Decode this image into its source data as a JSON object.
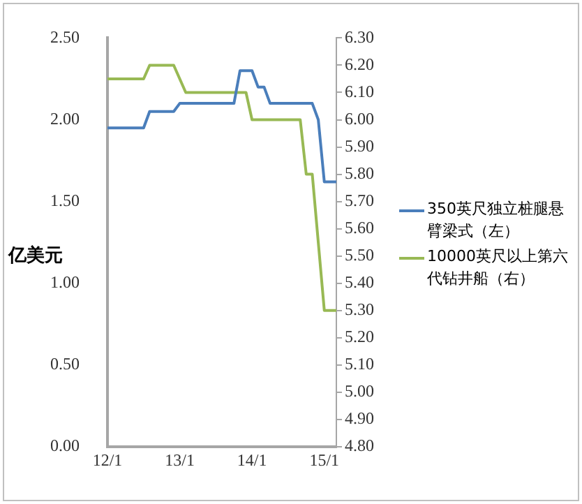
{
  "chart_data": {
    "type": "line",
    "ylabel": "亿美元",
    "legend": "right",
    "grid": false,
    "marker": "none",
    "categories": [
      "12/1",
      null,
      null,
      null,
      null,
      null,
      null,
      null,
      null,
      null,
      null,
      null,
      "13/1",
      null,
      null,
      null,
      null,
      null,
      null,
      null,
      null,
      null,
      null,
      null,
      "14/1",
      null,
      null,
      null,
      null,
      null,
      null,
      null,
      null,
      null,
      null,
      null,
      "15/1",
      null,
      null
    ],
    "ylim": [
      0,
      2.5
    ],
    "yticks": [
      {
        "value": 0,
        "label": "0.00"
      },
      {
        "value": 0.5,
        "label": "0.50"
      },
      {
        "value": 1,
        "label": "1.00"
      },
      {
        "value": 1.5,
        "label": "1.50"
      },
      {
        "value": 2,
        "label": "2.00"
      },
      {
        "value": 2.5,
        "label": "2.50"
      }
    ],
    "y2lim": [
      4.8,
      6.3
    ],
    "y2ticks": [
      {
        "value": 4.8,
        "label": "4.80"
      },
      {
        "value": 4.9,
        "label": "4.90"
      },
      {
        "value": 5.0,
        "label": "5.00"
      },
      {
        "value": 5.1,
        "label": "5.10"
      },
      {
        "value": 5.2,
        "label": "5.20"
      },
      {
        "value": 5.3,
        "label": "5.30"
      },
      {
        "value": 5.4,
        "label": "5.40"
      },
      {
        "value": 5.5,
        "label": "5.50"
      },
      {
        "value": 5.6,
        "label": "5.60"
      },
      {
        "value": 5.7,
        "label": "5.70"
      },
      {
        "value": 5.8,
        "label": "5.80"
      },
      {
        "value": 5.9,
        "label": "5.90"
      },
      {
        "value": 6.0,
        "label": "6.00"
      },
      {
        "value": 6.1,
        "label": "6.10"
      },
      {
        "value": 6.2,
        "label": "6.20"
      },
      {
        "value": 6.3,
        "label": "6.30"
      }
    ],
    "series": [
      {
        "name": "350英尺独立桩腿悬臂梁式（左）",
        "color": "#4a7ebb",
        "values": [
          1.95,
          1.95,
          1.95,
          1.95,
          1.95,
          1.95,
          1.95,
          2.05,
          2.05,
          2.05,
          2.05,
          2.05,
          2.1,
          2.1,
          2.1,
          2.1,
          2.1,
          2.1,
          2.1,
          2.1,
          2.1,
          2.1,
          2.3,
          2.3,
          2.3,
          2.2,
          2.2,
          2.1,
          2.1,
          2.1,
          2.1,
          2.1,
          2.1,
          2.1,
          2.1,
          2.0,
          1.62,
          1.62,
          1.62
        ]
      },
      {
        "name": "10000英尺以上第六代钻井船（右）",
        "color": "#98b954",
        "axis": "y2",
        "values": [
          6.15,
          6.15,
          6.15,
          6.15,
          6.15,
          6.15,
          6.15,
          6.2,
          6.2,
          6.2,
          6.2,
          6.2,
          6.15,
          6.1,
          6.1,
          6.1,
          6.1,
          6.1,
          6.1,
          6.1,
          6.1,
          6.1,
          6.1,
          6.1,
          6.0,
          6.0,
          6.0,
          6.0,
          6.0,
          6.0,
          6.0,
          6.0,
          6.0,
          5.8,
          5.8,
          5.55,
          5.3,
          5.3,
          5.3
        ]
      }
    ]
  }
}
